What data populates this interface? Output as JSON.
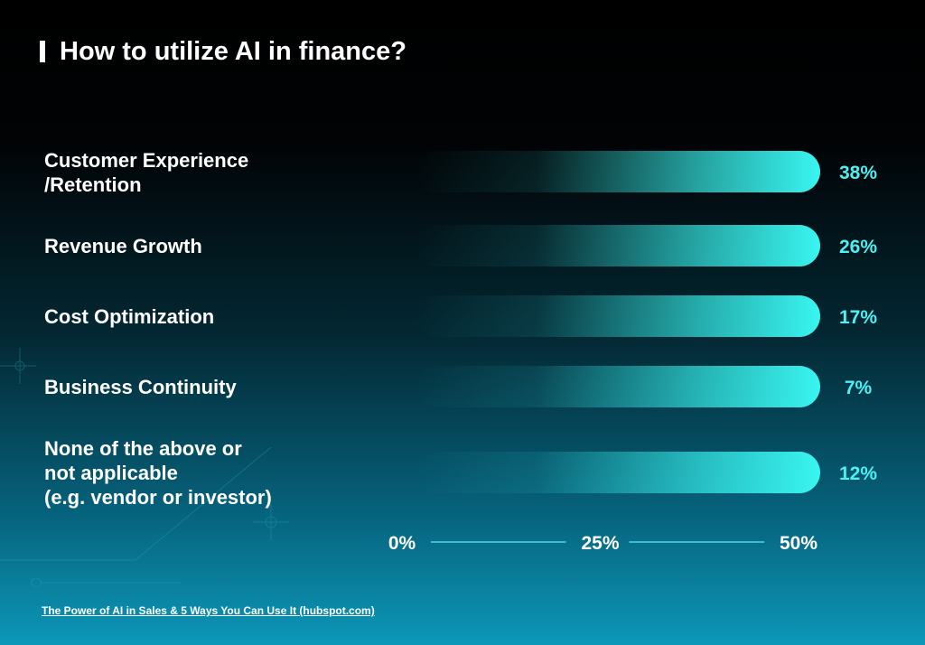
{
  "title": "How to utilize AI in finance?",
  "source": "The Power of AI in Sales & 5 Ways You Can Use It (hubspot.com)",
  "colors": {
    "bar": "#39f5f0",
    "value_text": "#4ff0f2",
    "axis_line": "#4fd6e3"
  },
  "chart_data": {
    "type": "bar",
    "orientation": "horizontal",
    "title": "How to utilize AI in finance?",
    "categories": [
      "Customer Experience\n/Retention",
      "Revenue Growth",
      "Cost Optimization",
      "Business Continuity",
      "None of the above or\nnot applicable\n(e.g. vendor or investor)"
    ],
    "values": [
      38,
      26,
      17,
      7,
      12
    ],
    "value_labels": [
      "38%",
      "26%",
      "17%",
      "7%",
      "12%"
    ],
    "xlim": [
      0,
      50
    ],
    "ticks": [
      0,
      25,
      50
    ],
    "tick_labels": [
      "0%",
      "25%",
      "50%"
    ],
    "xlabel": "",
    "ylabel": "",
    "legend": "none"
  }
}
